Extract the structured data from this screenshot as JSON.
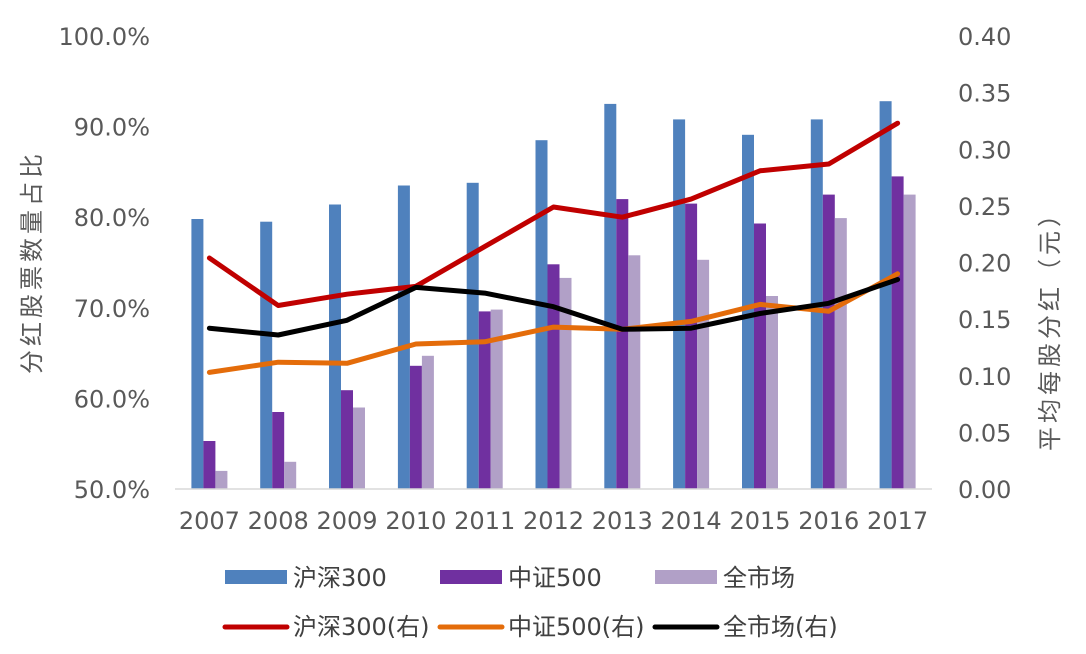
{
  "chart_data": {
    "type": "bar+line",
    "categories": [
      "2007",
      "2008",
      "2009",
      "2010",
      "2011",
      "2012",
      "2013",
      "2014",
      "2015",
      "2016",
      "2017"
    ],
    "left_axis": {
      "title": "分红股票数量占比",
      "ylim": [
        50,
        100
      ],
      "ticks": [
        "50.0%",
        "60.0%",
        "70.0%",
        "80.0%",
        "90.0%",
        "100.0%"
      ],
      "tick_values": [
        50,
        60,
        70,
        80,
        90,
        100
      ]
    },
    "right_axis": {
      "title": "平均每股分红（元）",
      "ylim": [
        0,
        0.4
      ],
      "ticks": [
        "0.00",
        "0.05",
        "0.10",
        "0.15",
        "0.20",
        "0.25",
        "0.30",
        "0.35",
        "0.40"
      ],
      "tick_values": [
        0,
        0.05,
        0.1,
        0.15,
        0.2,
        0.25,
        0.3,
        0.35,
        0.4
      ]
    },
    "bar_series": [
      {
        "name": "沪深300",
        "color": "#4F81BD",
        "values": [
          79.8,
          79.5,
          81.4,
          83.5,
          83.8,
          88.5,
          92.5,
          90.8,
          89.1,
          90.8,
          92.8
        ]
      },
      {
        "name": "中证500",
        "color": "#7030A0",
        "values": [
          55.3,
          58.5,
          60.9,
          63.6,
          69.6,
          74.8,
          82.0,
          81.5,
          79.3,
          82.5,
          84.5
        ]
      },
      {
        "name": "全市场",
        "color": "#B1A0C7",
        "values": [
          52.0,
          53.0,
          59.0,
          64.7,
          69.8,
          73.3,
          75.8,
          75.3,
          71.3,
          79.9,
          82.5
        ]
      }
    ],
    "line_series": [
      {
        "name": "沪深300(右)",
        "color": "#C00000",
        "values": [
          0.204,
          0.162,
          0.172,
          0.179,
          0.214,
          0.249,
          0.24,
          0.256,
          0.281,
          0.287,
          0.323
        ]
      },
      {
        "name": "中证500(右)",
        "color": "#E46C0A",
        "values": [
          0.103,
          0.112,
          0.111,
          0.128,
          0.13,
          0.143,
          0.141,
          0.148,
          0.163,
          0.157,
          0.19
        ]
      },
      {
        "name": "全市场(右)",
        "color": "#000000",
        "values": [
          0.142,
          0.136,
          0.149,
          0.178,
          0.173,
          0.161,
          0.141,
          0.142,
          0.155,
          0.164,
          0.185
        ]
      }
    ],
    "legend": {
      "placement": "bottom",
      "rows": [
        [
          "沪深300",
          "中证500",
          "全市场"
        ],
        [
          "沪深300(右)",
          "中证500(右)",
          "全市场(右)"
        ]
      ]
    }
  }
}
